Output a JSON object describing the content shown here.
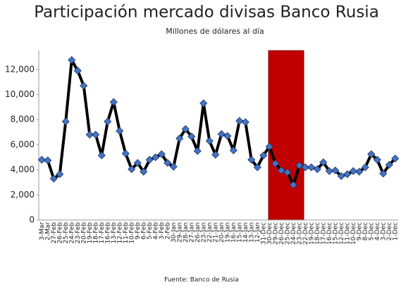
{
  "chart_data": {
    "type": "line",
    "title": "Participación mercado divisas Banco Rusia",
    "subtitle": "Millones de dólares al día",
    "source": "Fuente: Banco de Rusia",
    "categories": [
      "3-Mar",
      "2-Mar",
      "27-Feb",
      "26-Feb",
      "25-Feb",
      "24-Feb",
      "23-Feb",
      "20-Feb",
      "19-Feb",
      "18-Feb",
      "17-Feb",
      "16-Feb",
      "13-Feb",
      "12-Feb",
      "11-Feb",
      "10-Feb",
      "9-Feb",
      "6-Feb",
      "5-Feb",
      "4-Feb",
      "3-Feb",
      "2-Feb",
      "30-Jan",
      "29-Jan",
      "28-Jan",
      "27-Jan",
      "26-Jan",
      "23-Jan",
      "22-Jan",
      "21-Jan",
      "20-Jan",
      "19-Jan",
      "16-Jan",
      "15-Jan",
      "14-Jan",
      "13-Jan",
      "12-Jan",
      "31-Dec",
      "30-Dec",
      "29-Dec",
      "26-Dec",
      "25-Dec",
      "24-Dec",
      "23-Dec",
      "22-Dec",
      "19-Dec",
      "18-Dec",
      "17-Dec",
      "16-Dec",
      "15-Dec",
      "12-Dec",
      "11-Dec",
      "10-Dec",
      "9-Dec",
      "8-Dec",
      "5-Dec",
      "4-Dec",
      "3-Dec",
      "2-Dec",
      "1-Dec"
    ],
    "series": [
      {
        "color": "#4472c4",
        "values": [
          4800,
          4750,
          3300,
          3650,
          7850,
          12750,
          11900,
          10700,
          6800,
          6800,
          5150,
          7850,
          9400,
          7100,
          5300,
          4050,
          4550,
          3850,
          4800,
          5000,
          5250,
          4550,
          4250,
          6500,
          7250,
          6650,
          5500,
          9300,
          6300,
          5200,
          6850,
          6700,
          5550,
          7900,
          7800,
          4800,
          4200,
          5150,
          5850,
          4500,
          3950,
          3800,
          2800,
          4350,
          4200,
          4200,
          4050,
          4600,
          3900,
          3950,
          3500,
          3650,
          3900,
          3850,
          4200,
          5250,
          4800,
          3700,
          4400,
          4900
        ]
      }
    ],
    "ylim": [
      0,
      13500
    ],
    "yticks": [
      0,
      {
        "value": 2000,
        "label": "2,000"
      },
      {
        "value": 4000,
        "label": "4,000"
      },
      {
        "value": 6000,
        "label": "6,000"
      },
      {
        "value": 8000,
        "label": "8,000"
      },
      {
        "value": 10000,
        "label": "10,000"
      },
      {
        "value": 12000,
        "label": "12,000"
      }
    ]
  }
}
